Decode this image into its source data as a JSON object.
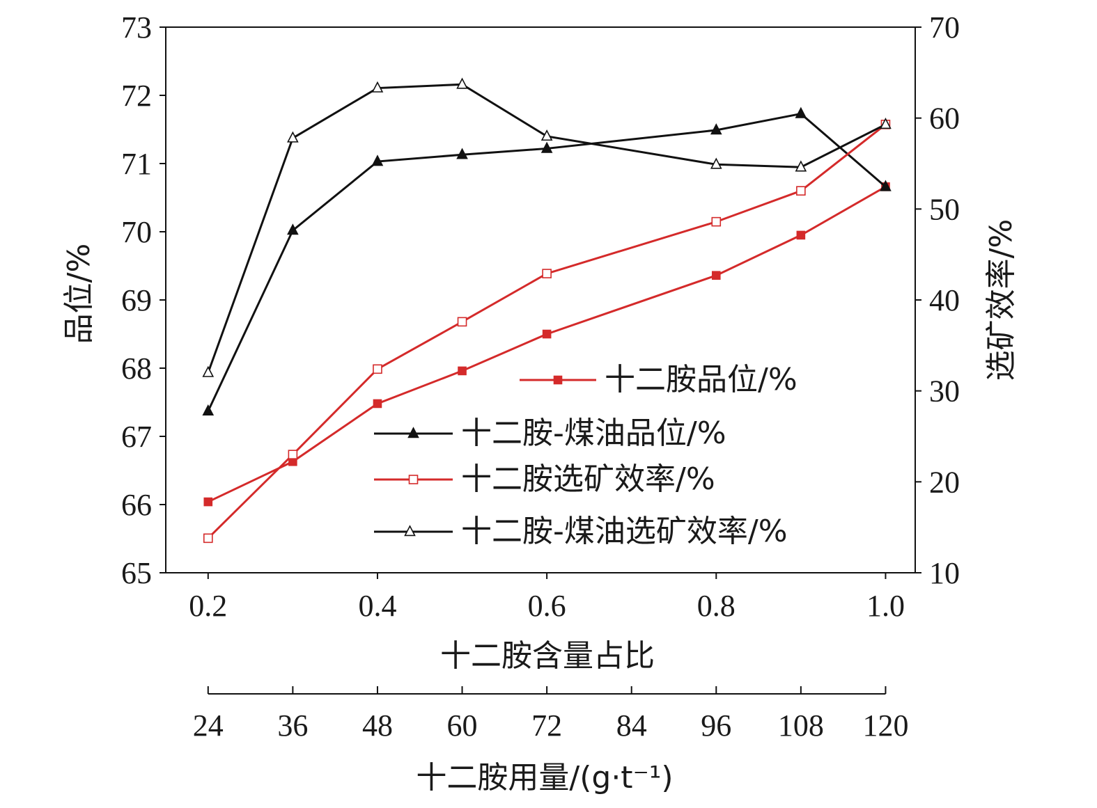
{
  "chart_data": {
    "type": "line",
    "xlabel": "十二胺含量占比",
    "ylabel_left": "品位/%",
    "ylabel_right": "选矿效率/%",
    "secondary_xlabel": "十二胺用量/(g·t⁻¹)",
    "xlim": [
      0.15,
      1.035
    ],
    "ylim_left": [
      65,
      73
    ],
    "ylim_right": [
      10,
      70
    ],
    "x_ticks": [
      "0.2",
      "0.4",
      "0.6",
      "0.8",
      "1.0"
    ],
    "x_tick_values": [
      0.2,
      0.4,
      0.6,
      0.8,
      1.0
    ],
    "y_left_ticks": [
      "65",
      "66",
      "67",
      "68",
      "69",
      "70",
      "71",
      "72",
      "73"
    ],
    "y_right_ticks": [
      "10",
      "20",
      "30",
      "40",
      "50",
      "60",
      "70"
    ],
    "secondary_x_ticks": [
      "24",
      "36",
      "48",
      "60",
      "72",
      "84",
      "96",
      "108",
      "120"
    ],
    "x": [
      0.2,
      0.3,
      0.4,
      0.5,
      0.6,
      0.8,
      0.9,
      1.0
    ],
    "series": [
      {
        "name": "十二胺品位/%",
        "axis": "left",
        "color": "#d42a2a",
        "marker": "square-filled",
        "values": [
          66.04,
          66.63,
          67.48,
          67.96,
          68.5,
          69.36,
          69.95,
          70.66
        ]
      },
      {
        "name": "十二胺-煤油品位/%",
        "axis": "left",
        "color": "#111111",
        "marker": "triangle-filled",
        "values": [
          67.37,
          70.02,
          71.03,
          71.13,
          71.22,
          71.49,
          71.73,
          70.66
        ]
      },
      {
        "name": "十二胺选矿效率/%",
        "axis": "right",
        "color": "#d42a2a",
        "marker": "square-open",
        "values": [
          13.8,
          23.0,
          32.4,
          37.6,
          42.9,
          48.6,
          52.0,
          59.3
        ]
      },
      {
        "name": "十二胺-煤油选矿效率/%",
        "axis": "right",
        "color": "#111111",
        "marker": "triangle-open",
        "values": [
          32.0,
          57.8,
          63.3,
          63.7,
          58.0,
          54.9,
          54.6,
          59.3
        ]
      }
    ],
    "legend_position": "center-right",
    "grid": false
  }
}
